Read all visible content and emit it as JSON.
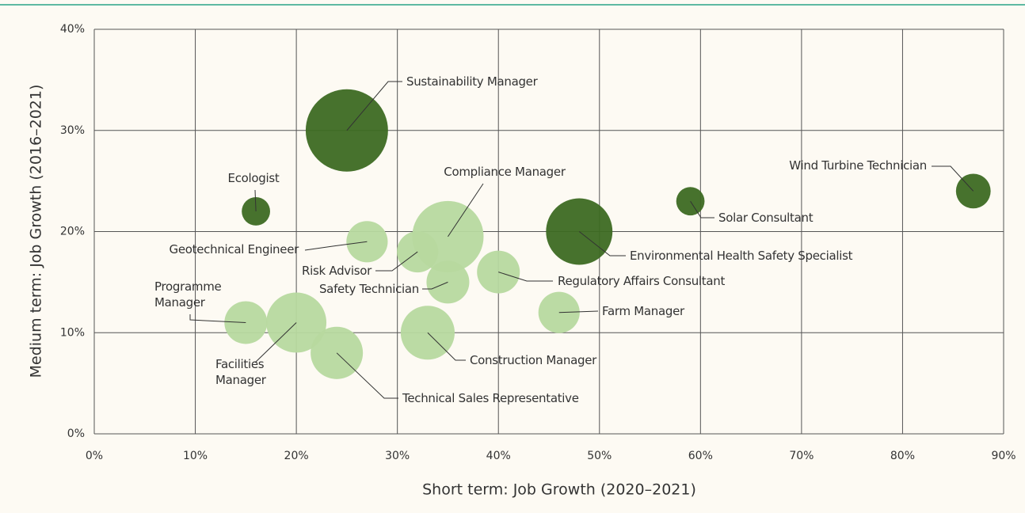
{
  "chart_data": {
    "type": "bubble",
    "xlabel": "Short term: Job Growth (2020–2021)",
    "ylabel": "Medium term: Job Growth (2016–2021)",
    "xlim": [
      0,
      90
    ],
    "ylim": [
      0,
      40
    ],
    "xticks": [
      {
        "value": 0,
        "label": "0%"
      },
      {
        "value": 10,
        "label": "10%"
      },
      {
        "value": 20,
        "label": "20%"
      },
      {
        "value": 30,
        "label": "30%"
      },
      {
        "value": 40,
        "label": "40%"
      },
      {
        "value": 50,
        "label": "50%"
      },
      {
        "value": 60,
        "label": "60%"
      },
      {
        "value": 70,
        "label": "70%"
      },
      {
        "value": 80,
        "label": "80%"
      },
      {
        "value": 90,
        "label": "90%"
      }
    ],
    "yticks": [
      {
        "value": 0,
        "label": "0%"
      },
      {
        "value": 10,
        "label": "10%"
      },
      {
        "value": 20,
        "label": "20%"
      },
      {
        "value": 30,
        "label": "30%"
      },
      {
        "value": 40,
        "label": "40%"
      }
    ],
    "grid": true,
    "points": [
      {
        "name": "Sustainability Manager",
        "x": 25,
        "y": 30,
        "size": 27,
        "color": "#3d6a22"
      },
      {
        "name": "Ecologist",
        "x": 16,
        "y": 22,
        "size": 3.2,
        "color": "#3d6a22"
      },
      {
        "name": "Wind Turbine Technician",
        "x": 87,
        "y": 24,
        "size": 4.8,
        "color": "#3d6a22"
      },
      {
        "name": "Solar Consultant",
        "x": 59,
        "y": 23,
        "size": 3.2,
        "color": "#3d6a22"
      },
      {
        "name": "Environmental Health Safety Specialist",
        "x": 48,
        "y": 20,
        "size": 17.6,
        "color": "#3d6a22"
      },
      {
        "name": "Compliance Manager",
        "x": 35,
        "y": 19.5,
        "size": 20.3,
        "color": "#b7d99f"
      },
      {
        "name": "Geotechnical Engineer",
        "x": 27,
        "y": 19,
        "size": 6.8,
        "color": "#b7d99f"
      },
      {
        "name": "Risk Advisor",
        "x": 32,
        "y": 18,
        "size": 6.8,
        "color": "#b7d99f"
      },
      {
        "name": "Safety Technician",
        "x": 35,
        "y": 15,
        "size": 7.3,
        "color": "#b7d99f"
      },
      {
        "name": "Regulatory Affairs Consultant",
        "x": 40,
        "y": 16,
        "size": 7.3,
        "color": "#b7d99f"
      },
      {
        "name": "Farm Manager",
        "x": 46,
        "y": 12,
        "size": 6.8,
        "color": "#b7d99f"
      },
      {
        "name": "Programme Manager",
        "x": 15,
        "y": 11,
        "size": 7.3,
        "color": "#b7d99f"
      },
      {
        "name": "Facilities Manager",
        "x": 20,
        "y": 11,
        "size": 14.4,
        "color": "#b7d99f"
      },
      {
        "name": "Technical Sales Representative",
        "x": 24,
        "y": 8,
        "size": 10.9,
        "color": "#b7d99f"
      },
      {
        "name": "Construction Manager",
        "x": 33,
        "y": 10,
        "size": 11.6,
        "color": "#b7d99f"
      }
    ]
  }
}
